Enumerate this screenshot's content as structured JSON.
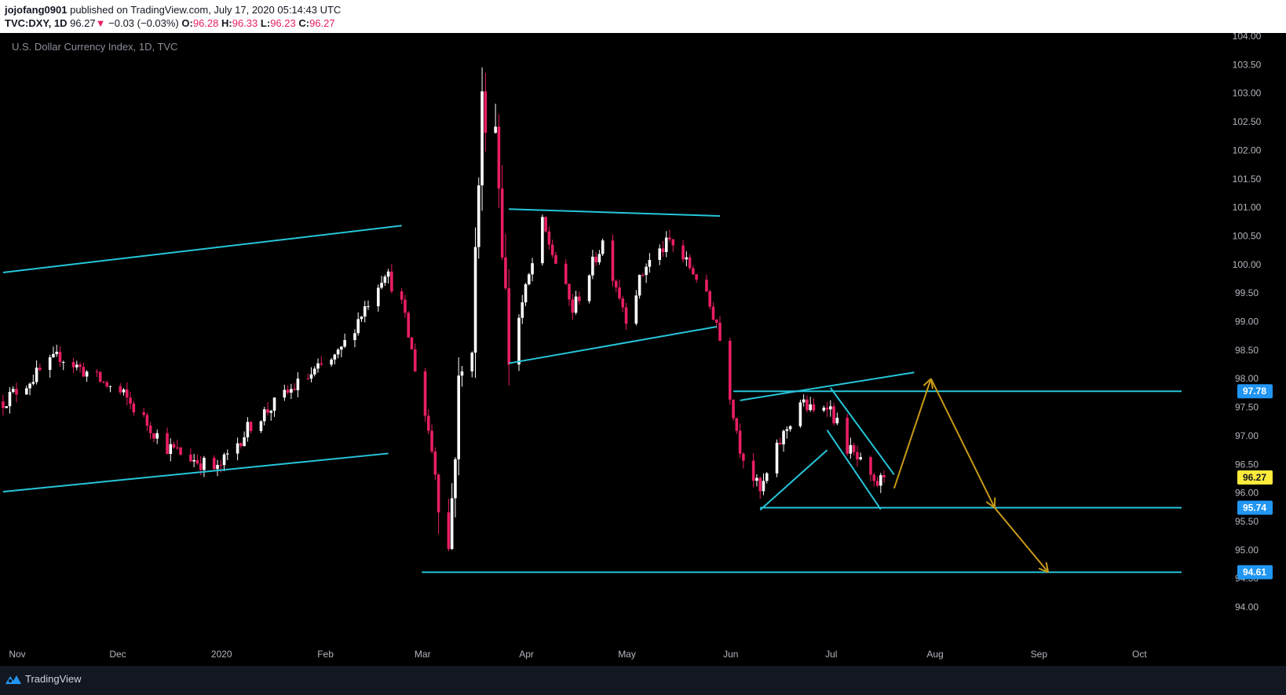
{
  "header": {
    "author": "jojofang0901",
    "published": "published on TradingView.com, July 17, 2020 05:14:43 UTC",
    "symbol": "TVC:DXY, 1D",
    "last": "96.27",
    "change": "−0.03 (−0.03%)",
    "o_label": "O:",
    "o": "96.28",
    "h_label": "H:",
    "h": "96.33",
    "l_label": "L:",
    "l": "96.23",
    "c_label": "C:",
    "c": "96.27"
  },
  "chart_title": "U.S. Dollar Currency Index, 1D, TVC",
  "footer": {
    "brand": "TradingView"
  },
  "colors": {
    "background": "#000000",
    "up": "#ffffff",
    "down": "#e91e63",
    "trendline": "#26c6da",
    "hline": "#2196f3",
    "projection": "#c89a16",
    "axis_text": "#b2b5be",
    "label_blue": "#2196f3",
    "label_yellow": "#ffeb3b"
  },
  "chart_data": {
    "type": "candlestick",
    "y_ticks": [
      "94.00",
      "94.50",
      "95.00",
      "95.50",
      "96.00",
      "96.50",
      "97.00",
      "97.50",
      "98.00",
      "98.50",
      "99.00",
      "99.50",
      "100.00",
      "100.50",
      "101.00",
      "101.50",
      "102.00",
      "102.50",
      "103.00",
      "103.50",
      "104.00"
    ],
    "ylim": [
      94.0,
      104.0
    ],
    "x_labels": [
      {
        "label": "Nov",
        "date": "2019-11-01"
      },
      {
        "label": "Dec",
        "date": "2019-12-01"
      },
      {
        "label": "2020",
        "date": "2020-01-01"
      },
      {
        "label": "Feb",
        "date": "2020-02-01"
      },
      {
        "label": "Mar",
        "date": "2020-03-01"
      },
      {
        "label": "Apr",
        "date": "2020-04-01"
      },
      {
        "label": "May",
        "date": "2020-05-01"
      },
      {
        "label": "Jun",
        "date": "2020-06-01"
      },
      {
        "label": "Jul",
        "date": "2020-07-01"
      },
      {
        "label": "Aug",
        "date": "2020-08-01"
      },
      {
        "label": "Sep",
        "date": "2020-09-01"
      },
      {
        "label": "Oct",
        "date": "2020-10-01"
      }
    ],
    "price_labels": [
      {
        "value": 97.78,
        "text": "97.78",
        "style": "blue"
      },
      {
        "value": 96.27,
        "text": "96.27",
        "style": "yellow"
      },
      {
        "value": 95.74,
        "text": "95.74",
        "style": "blue"
      },
      {
        "value": 94.61,
        "text": "94.61",
        "style": "blue"
      }
    ],
    "anchors": [
      {
        "date": "2019-10-28",
        "value": 97.6
      },
      {
        "date": "2019-11-14",
        "value": 98.4
      },
      {
        "date": "2019-12-03",
        "value": 97.7
      },
      {
        "date": "2019-12-16",
        "value": 96.8
      },
      {
        "date": "2019-12-31",
        "value": 96.4
      },
      {
        "date": "2020-01-10",
        "value": 97.2
      },
      {
        "date": "2020-01-24",
        "value": 97.9
      },
      {
        "date": "2020-02-05",
        "value": 98.4
      },
      {
        "date": "2020-02-19",
        "value": 99.9
      },
      {
        "date": "2020-02-24",
        "value": 99.3
      },
      {
        "date": "2020-03-03",
        "value": 97.1
      },
      {
        "date": "2020-03-09",
        "value": 95.0
      },
      {
        "date": "2020-03-12",
        "value": 97.8
      },
      {
        "date": "2020-03-16",
        "value": 98.8
      },
      {
        "date": "2020-03-19",
        "value": 102.8
      },
      {
        "date": "2020-03-23",
        "value": 102.5
      },
      {
        "date": "2020-03-27",
        "value": 98.4
      },
      {
        "date": "2020-04-06",
        "value": 100.7
      },
      {
        "date": "2020-04-15",
        "value": 99.2
      },
      {
        "date": "2020-04-24",
        "value": 100.4
      },
      {
        "date": "2020-05-01",
        "value": 99.1
      },
      {
        "date": "2020-05-07",
        "value": 100.0
      },
      {
        "date": "2020-05-14",
        "value": 100.4
      },
      {
        "date": "2020-05-22",
        "value": 99.8
      },
      {
        "date": "2020-05-28",
        "value": 99.0
      },
      {
        "date": "2020-06-04",
        "value": 96.8
      },
      {
        "date": "2020-06-10",
        "value": 96.0
      },
      {
        "date": "2020-06-16",
        "value": 96.9
      },
      {
        "date": "2020-06-22",
        "value": 97.6
      },
      {
        "date": "2020-06-26",
        "value": 97.4
      },
      {
        "date": "2020-06-30",
        "value": 97.6
      },
      {
        "date": "2020-07-06",
        "value": 96.8
      },
      {
        "date": "2020-07-10",
        "value": 96.5
      },
      {
        "date": "2020-07-14",
        "value": 96.1
      },
      {
        "date": "2020-07-17",
        "value": 96.27
      }
    ],
    "drawings": {
      "trendlines": [
        {
          "from": {
            "date": "2019-10-28",
            "value": 99.86
          },
          "to": {
            "date": "2020-02-24",
            "value": 100.68
          }
        },
        {
          "from": {
            "date": "2019-10-28",
            "value": 96.02
          },
          "to": {
            "date": "2020-02-20",
            "value": 96.69
          }
        },
        {
          "from": {
            "date": "2020-03-27",
            "value": 100.97
          },
          "to": {
            "date": "2020-05-29",
            "value": 100.85
          }
        },
        {
          "from": {
            "date": "2020-03-27",
            "value": 98.27
          },
          "to": {
            "date": "2020-05-28",
            "value": 98.91
          }
        },
        {
          "from": {
            "date": "2020-06-04",
            "value": 97.62
          },
          "to": {
            "date": "2020-07-26",
            "value": 98.11
          }
        },
        {
          "from": {
            "date": "2020-06-10",
            "value": 95.7
          },
          "to": {
            "date": "2020-06-30",
            "value": 96.75
          }
        },
        {
          "from": {
            "date": "2020-06-30",
            "value": 97.1
          },
          "to": {
            "date": "2020-07-16",
            "value": 95.71
          }
        },
        {
          "from": {
            "date": "2020-07-01",
            "value": 97.84
          },
          "to": {
            "date": "2020-07-20",
            "value": 96.32
          }
        }
      ],
      "hlines": [
        {
          "from": "2020-06-02",
          "value": 97.78
        },
        {
          "from": "2020-06-10",
          "value": 95.74
        },
        {
          "from": "2020-03-01",
          "value": 94.61
        }
      ],
      "projection": [
        {
          "date": "2020-07-20",
          "value": 96.08
        },
        {
          "date": "2020-07-31",
          "value": 98.0
        },
        {
          "date": "2020-08-19",
          "value": 95.74
        },
        {
          "date": "2020-09-04",
          "value": 94.61
        }
      ]
    }
  }
}
